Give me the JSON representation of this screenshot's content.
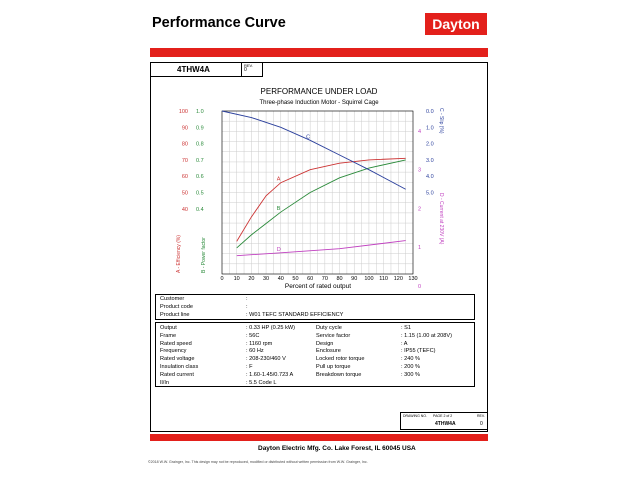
{
  "header": {
    "title": "Performance Curve",
    "logo": "Dayton",
    "model": "4THW4A",
    "rev_label": "REV.",
    "rev_value": "0"
  },
  "colors": {
    "brand_red": "#e3201b",
    "efficiency": "#cc3333",
    "power_factor": "#2a8a3a",
    "slip": "#2a3f9c",
    "current": "#c040c0"
  },
  "chart_data": {
    "type": "line",
    "title": "PERFORMANCE UNDER LOAD",
    "subtitle": "Three-phase Induction Motor - Squirrel Cage",
    "xlabel": "Percent of rated output",
    "x_ticks": [
      0,
      10,
      20,
      30,
      40,
      50,
      60,
      70,
      80,
      90,
      100,
      110,
      120,
      130
    ],
    "xlim": [
      0,
      130
    ],
    "left_axes": [
      {
        "label": "A - Efficiency (%)",
        "ticks": [
          100,
          90,
          80,
          70,
          60,
          50,
          40
        ],
        "range": [
          0,
          100
        ]
      },
      {
        "label": "B - Power factor",
        "ticks": [
          "1.0",
          "0.9",
          "0.8",
          "0.7",
          "0.6",
          "0.5",
          "0.4"
        ],
        "range": [
          0,
          1
        ]
      }
    ],
    "right_axes": [
      {
        "label": "C - Slip (%)",
        "ticks": [
          "0.0",
          "1.0",
          "2.0",
          "3.0",
          "4.0",
          "5.0"
        ],
        "range": [
          0,
          10
        ],
        "inverted": true
      },
      {
        "label": "D - Current at 230V (A)",
        "ticks": [
          4,
          3,
          2,
          1,
          0
        ],
        "range": [
          0,
          4
        ]
      }
    ],
    "series": [
      {
        "name": "A",
        "x": [
          10,
          20,
          30,
          40,
          60,
          80,
          100,
          125
        ],
        "values": [
          20,
          35,
          48,
          56,
          64,
          68,
          70,
          71
        ]
      },
      {
        "name": "B",
        "x": [
          10,
          20,
          30,
          40,
          60,
          80,
          100,
          125
        ],
        "values": [
          0.16,
          0.24,
          0.31,
          0.38,
          0.5,
          0.59,
          0.65,
          0.7
        ]
      },
      {
        "name": "C",
        "x": [
          0,
          20,
          40,
          60,
          80,
          100,
          125
        ],
        "values": [
          0.0,
          0.4,
          1.0,
          1.8,
          2.7,
          3.6,
          4.8
        ]
      },
      {
        "name": "D",
        "x": [
          10,
          40,
          80,
          125
        ],
        "values": [
          0.45,
          0.52,
          0.62,
          0.82
        ]
      }
    ]
  },
  "info_top": [
    {
      "label": "Customer",
      "value": ""
    },
    {
      "label": "Product code",
      "value": ""
    },
    {
      "label": "Product line",
      "value": "W01 TEFC STANDARD  EFFICIENCY"
    }
  ],
  "specs_left": [
    {
      "label": "Output",
      "value": "0.33 HP (0.25 kW)"
    },
    {
      "label": "Frame",
      "value": "56C"
    },
    {
      "label": "Rated speed",
      "value": "1160 rpm"
    },
    {
      "label": "Frequency",
      "value": "60 Hz"
    },
    {
      "label": "Rated voltage",
      "value": "208-230/460 V"
    },
    {
      "label": "Insulation class",
      "value": "F"
    },
    {
      "label": "Rated current",
      "value": "1.60-1.45/0.723 A"
    },
    {
      "label": "Il/In",
      "value": "5.5   Code L"
    }
  ],
  "specs_right": [
    {
      "label": "Duty cycle",
      "value": "S1"
    },
    {
      "label": "Service factor",
      "value": "1.15   (1.00 at 208V)"
    },
    {
      "label": "Design",
      "value": "A"
    },
    {
      "label": "Enclosure",
      "value": "IP55 (TEFC)"
    },
    {
      "label": "Locked rotor torque",
      "value": "240 %"
    },
    {
      "label": "Pull up torque",
      "value": "200 %"
    },
    {
      "label": "Breakdown torque",
      "value": "300 %"
    }
  ],
  "drawing": {
    "drawing_no_label": "DRAWING NO.",
    "page_label": "PAGE  2  of  2",
    "number": "4THW4A",
    "rev_label": "REV.",
    "rev_value": "0"
  },
  "footer": {
    "company": "Dayton Electric Mfg. Co.  Lake Forest, IL  60045  USA",
    "copyright": "©2018 W.W. Grainger, Inc.  This design may not be reproduced, modified or distributed without written permission from W.W. Grainger, Inc."
  }
}
